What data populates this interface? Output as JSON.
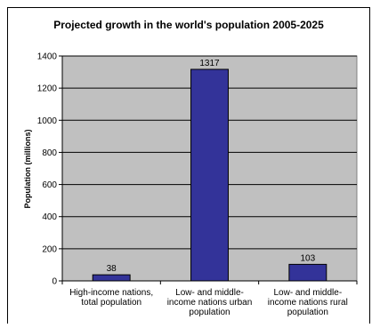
{
  "chart_data": {
    "type": "bar",
    "title": "Projected growth in the world's population 2005-2025",
    "ylabel": "Population (millions)",
    "xlabel": "",
    "ylim": [
      0,
      1400
    ],
    "yticks": [
      0,
      200,
      400,
      600,
      800,
      1000,
      1200,
      1400
    ],
    "grid": true,
    "categories": [
      [
        "High-income nations,",
        "total population"
      ],
      [
        "Low- and middle-",
        "income nations urban",
        "population"
      ],
      [
        "Low- and middle-",
        "income nations rural",
        "population"
      ]
    ],
    "values": [
      38,
      1317,
      103
    ],
    "data_labels": [
      "38",
      "1317",
      "103"
    ],
    "colors": {
      "bar": "#333399",
      "plot_bg": "#c0c0c0",
      "grid": "#000000"
    }
  }
}
